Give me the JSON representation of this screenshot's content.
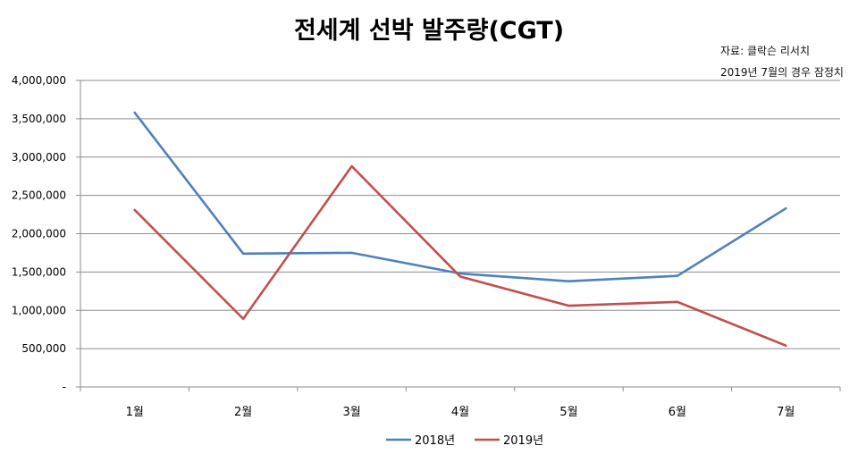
{
  "chart_data": {
    "type": "line",
    "title": "전세계 선박 발주량(CGT)",
    "notes": [
      "자료: 클락슨 리서치",
      "2019년 7월의 경우 잠정치"
    ],
    "categories": [
      "1월",
      "2월",
      "3월",
      "4월",
      "5월",
      "6월",
      "7월"
    ],
    "series": [
      {
        "name": "2018년",
        "color": "#4f81bd",
        "values": [
          3580000,
          1740000,
          1750000,
          1480000,
          1380000,
          1450000,
          2330000
        ]
      },
      {
        "name": "2019년",
        "color": "#c0504d",
        "values": [
          2310000,
          890000,
          2880000,
          1440000,
          1060000,
          1110000,
          540000
        ]
      }
    ],
    "ylim": [
      0,
      4000000
    ],
    "yticks": [
      0,
      500000,
      1000000,
      1500000,
      2000000,
      2500000,
      3000000,
      3500000,
      4000000
    ],
    "ytick_labels": [
      "-",
      "500,000",
      "1,000,000",
      "1,500,000",
      "2,000,000",
      "2,500,000",
      "3,000,000",
      "3,500,000",
      "4,000,000"
    ],
    "grid": true,
    "legend": "bottom",
    "xlabel": "",
    "ylabel": ""
  }
}
